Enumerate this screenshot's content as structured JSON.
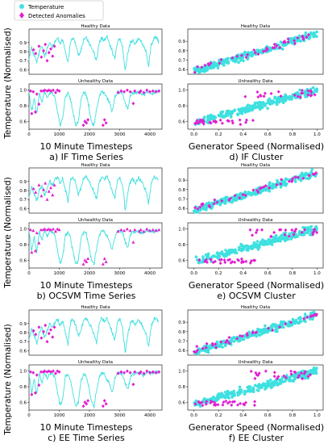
{
  "legend": {
    "series": [
      {
        "name": "Temperature",
        "color": "#3fe0e0",
        "marker": "circle"
      },
      {
        "name": "Detected Anomalies",
        "color": "#e020d0",
        "marker": "diamond"
      }
    ]
  },
  "colors": {
    "normal": "#3fe0e0",
    "anomaly": "#e020d0"
  },
  "row_ylabel": "Temperature (Normalised)",
  "col_xlabels": [
    "10 Minute Timesteps",
    "Generator Speed (Normalised)"
  ],
  "rows": [
    {
      "method": "IF",
      "captions": [
        "a) IF Time Series",
        "d) IF Cluster"
      ]
    },
    {
      "method": "OCSVM",
      "captions": [
        "b) OCSVM Time Series",
        "e) OCSVM Cluster"
      ]
    },
    {
      "method": "EE",
      "captions": [
        "c) EE Time Series",
        "f) EE Cluster"
      ]
    }
  ],
  "chart_data": [
    {
      "id": "a_healthy",
      "type": "line",
      "title": "Healthy Data",
      "x_ticks": [],
      "y_ticks": [
        "0.9",
        "0.8",
        "0.7",
        "0.6"
      ],
      "xlim": [
        0,
        4400
      ],
      "ylim": [
        0.55,
        1.05
      ],
      "series": [
        {
          "values": [
            0.72,
            0.84,
            0.76,
            0.68,
            0.8,
            0.86,
            0.74,
            0.83,
            0.9,
            0.86,
            0.92,
            0.95,
            0.88,
            0.93,
            0.8,
            0.68,
            0.92,
            0.95,
            0.88,
            0.75,
            0.82,
            0.93,
            0.96,
            0.9,
            0.85,
            0.78,
            0.7,
            0.9,
            0.95,
            0.92,
            0.96,
            0.88,
            0.8,
            0.72,
            0.9,
            0.95,
            0.85,
            0.58,
            0.78,
            0.9,
            0.93,
            0.88,
            0.95,
            0.92,
            0.85,
            0.8,
            0.65,
            0.88,
            0.94,
            0.96,
            0.9
          ]
        }
      ],
      "anomalies": [
        [
          150,
          0.82
        ],
        [
          220,
          0.78
        ],
        [
          330,
          0.86
        ],
        [
          410,
          0.74
        ],
        [
          480,
          0.81
        ],
        [
          540,
          0.88
        ],
        [
          600,
          0.7
        ],
        [
          660,
          0.79
        ],
        [
          720,
          0.83
        ],
        [
          780,
          0.75
        ],
        [
          840,
          0.86
        ]
      ]
    },
    {
      "id": "a_unhealthy",
      "type": "line",
      "title": "Unhealthy Data",
      "x_ticks": [
        "0",
        "1000",
        "2000",
        "3000",
        "4000"
      ],
      "y_ticks": [
        "1.0",
        "0.8",
        "0.6"
      ],
      "xlim": [
        0,
        4400
      ],
      "ylim": [
        0.5,
        1.08
      ],
      "series": [
        {
          "values": [
            0.98,
            0.72,
            0.9,
            0.7,
            0.97,
            0.85,
            0.99,
            0.9,
            0.97,
            0.96,
            0.92,
            0.72,
            0.55,
            0.65,
            0.92,
            0.96,
            0.88,
            0.7,
            0.55,
            0.6,
            0.88,
            0.97,
            0.94,
            0.8,
            0.6,
            0.55,
            0.75,
            0.92,
            0.98,
            0.96,
            0.9,
            0.84,
            0.72,
            0.9,
            0.97,
            0.98,
            0.96,
            0.84,
            0.76,
            0.92,
            0.97,
            0.96,
            0.98,
            0.96,
            0.94,
            0.97,
            0.99,
            0.96,
            0.97,
            0.99,
            0.97
          ]
        }
      ],
      "anomalies": [
        [
          50,
          0.99
        ],
        [
          90,
          0.7
        ],
        [
          140,
          0.98
        ],
        [
          210,
          0.72
        ],
        [
          260,
          0.95
        ],
        [
          330,
          0.82
        ],
        [
          400,
          0.99
        ],
        [
          470,
          0.99
        ],
        [
          520,
          1.0
        ],
        [
          600,
          0.99
        ],
        [
          660,
          1.0
        ],
        [
          720,
          0.99
        ],
        [
          800,
          1.0
        ],
        [
          880,
          0.97
        ],
        [
          940,
          1.0
        ],
        [
          1000,
          0.99
        ],
        [
          1800,
          0.55
        ],
        [
          1850,
          0.6
        ],
        [
          1900,
          0.58
        ],
        [
          1950,
          0.62
        ],
        [
          2450,
          0.55
        ],
        [
          2500,
          0.62
        ],
        [
          2550,
          0.58
        ],
        [
          2950,
          0.97
        ],
        [
          3050,
          0.99
        ],
        [
          3150,
          0.98
        ],
        [
          3250,
          1.0
        ],
        [
          3350,
          0.98
        ],
        [
          3450,
          0.83
        ],
        [
          3500,
          0.99
        ],
        [
          3650,
          0.97
        ],
        [
          3700,
          0.99
        ],
        [
          3800,
          0.97
        ],
        [
          3900,
          1.0
        ],
        [
          4000,
          0.98
        ],
        [
          4100,
          0.99
        ],
        [
          4200,
          0.98
        ],
        [
          4300,
          0.99
        ]
      ]
    },
    {
      "id": "d_healthy",
      "type": "scatter",
      "title": "Healthy Data",
      "x_ticks": [],
      "y_ticks": [
        "0.9",
        "0.8",
        "0.7",
        "0.6"
      ],
      "xlim": [
        -0.05,
        1.05
      ],
      "ylim": [
        0.55,
        1.03
      ]
    },
    {
      "id": "d_unhealthy",
      "type": "scatter",
      "title": "Unhealthy Data",
      "x_ticks": [
        "0.0",
        "0.2",
        "0.4",
        "0.6",
        "0.8",
        "1.0"
      ],
      "y_ticks": [
        "1.0",
        "0.8",
        "0.6"
      ],
      "xlim": [
        -0.05,
        1.05
      ],
      "ylim": [
        0.5,
        1.08
      ]
    },
    {
      "id": "b_healthy",
      "type": "line",
      "title": "Healthy Data",
      "x_ticks": [],
      "y_ticks": [
        "0.9",
        "0.8",
        "0.7",
        "0.6"
      ],
      "xlim": [
        0,
        4400
      ],
      "ylim": [
        0.55,
        1.05
      ]
    },
    {
      "id": "b_unhealthy",
      "type": "line",
      "title": "Unhealthy Data",
      "x_ticks": [
        "0",
        "1000",
        "2000",
        "3000",
        "4000"
      ],
      "y_ticks": [
        "1.0",
        "0.8",
        "0.6"
      ],
      "xlim": [
        0,
        4400
      ],
      "ylim": [
        0.5,
        1.08
      ]
    },
    {
      "id": "e_healthy",
      "type": "scatter",
      "title": "Healthy Data",
      "x_ticks": [],
      "y_ticks": [
        "0.9",
        "0.8",
        "0.7",
        "0.6"
      ],
      "xlim": [
        -0.05,
        1.05
      ],
      "ylim": [
        0.55,
        1.03
      ]
    },
    {
      "id": "e_unhealthy",
      "type": "scatter",
      "title": "Unhealthy Data",
      "x_ticks": [
        "0.0",
        "0.2",
        "0.4",
        "0.6",
        "0.8",
        "1.0"
      ],
      "y_ticks": [
        "1.0",
        "0.8",
        "0.6"
      ],
      "xlim": [
        -0.05,
        1.05
      ],
      "ylim": [
        0.5,
        1.08
      ]
    },
    {
      "id": "c_healthy",
      "type": "line",
      "title": "Healthy Data",
      "x_ticks": [],
      "y_ticks": [
        "0.9",
        "0.8",
        "0.7",
        "0.6"
      ],
      "xlim": [
        0,
        4400
      ],
      "ylim": [
        0.55,
        1.05
      ]
    },
    {
      "id": "c_unhealthy",
      "type": "line",
      "title": "Unhealthy Data",
      "x_ticks": [
        "0",
        "1000",
        "2000",
        "3000",
        "4000"
      ],
      "y_ticks": [
        "1.0",
        "0.8",
        "0.6"
      ],
      "xlim": [
        0,
        4400
      ],
      "ylim": [
        0.5,
        1.08
      ]
    },
    {
      "id": "f_healthy",
      "type": "scatter",
      "title": "Healthy Data",
      "x_ticks": [],
      "y_ticks": [
        "0.9",
        "0.8",
        "0.7",
        "0.6"
      ],
      "xlim": [
        -0.05,
        1.05
      ],
      "ylim": [
        0.55,
        1.03
      ]
    },
    {
      "id": "f_unhealthy",
      "type": "scatter",
      "title": "Unhealthy Data",
      "x_ticks": [
        "0.0",
        "0.2",
        "0.4",
        "0.6",
        "0.8",
        "1.0"
      ],
      "y_ticks": [
        "1.0",
        "0.8",
        "0.6"
      ],
      "xlim": [
        -0.05,
        1.05
      ],
      "ylim": [
        0.5,
        1.08
      ]
    }
  ]
}
